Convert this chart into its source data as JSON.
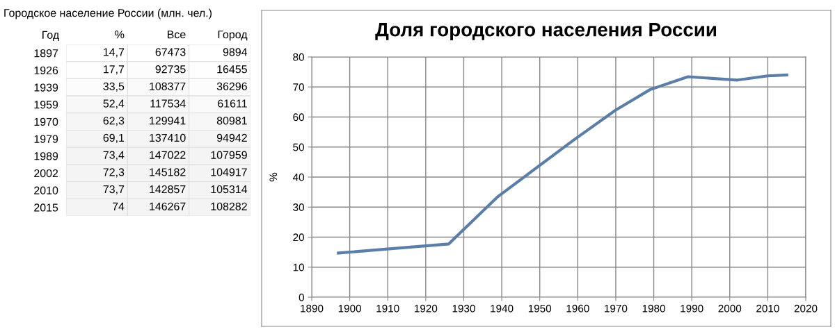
{
  "chart_data": [
    {
      "type": "heatmap",
      "title": "Городское население России (млн. чел.)",
      "ylabel": "Год",
      "categories": [
        "%",
        "Все",
        "Город"
      ],
      "y_categories": [
        "1897",
        "1926",
        "1939",
        "1959",
        "1970",
        "1979",
        "1989",
        "2002",
        "2010",
        "2015"
      ],
      "cells": [
        [
          14.7,
          67473,
          9894
        ],
        [
          17.7,
          92735,
          16455
        ],
        [
          33.5,
          108377,
          36296
        ],
        [
          52.4,
          117534,
          61611
        ],
        [
          62.3,
          129941,
          80981
        ],
        [
          69.1,
          137410,
          94942
        ],
        [
          73.4,
          147022,
          107959
        ],
        [
          72.3,
          145182,
          104917
        ],
        [
          73.7,
          142857,
          105314
        ],
        [
          74,
          146267,
          108282
        ]
      ],
      "cell_labels": [
        [
          "14,7",
          "67473",
          "9894"
        ],
        [
          "17,7",
          "92735",
          "16455"
        ],
        [
          "33,5",
          "108377",
          "36296"
        ],
        [
          "52,4",
          "117534",
          "61611"
        ],
        [
          "62,3",
          "129941",
          "80981"
        ],
        [
          "69,1",
          "137410",
          "94942"
        ],
        [
          "73,4",
          "147022",
          "107959"
        ],
        [
          "72,3",
          "145182",
          "104917"
        ],
        [
          "73,7",
          "142857",
          "105314"
        ],
        [
          "74",
          "146267",
          "108282"
        ]
      ]
    },
    {
      "type": "line",
      "title": "Доля городского населения России",
      "ylabel": "%",
      "x": [
        1897,
        1926,
        1939,
        1959,
        1970,
        1979,
        1989,
        2002,
        2010,
        2015
      ],
      "series": [
        {
          "color": "#5b7ea8",
          "values": [
            14.7,
            17.7,
            33.5,
            52.4,
            62.3,
            69.1,
            73.4,
            72.3,
            73.7,
            74
          ]
        }
      ],
      "xlim": [
        1890,
        2020
      ],
      "xticks": [
        1890,
        1900,
        1910,
        1920,
        1930,
        1940,
        1950,
        1960,
        1970,
        1980,
        1990,
        2000,
        2010,
        2020
      ],
      "ylim": [
        0,
        80
      ],
      "yticks": [
        0,
        10,
        20,
        30,
        40,
        50,
        60,
        70,
        80
      ],
      "grid": true,
      "marker": "none",
      "line_style": "solid"
    }
  ]
}
